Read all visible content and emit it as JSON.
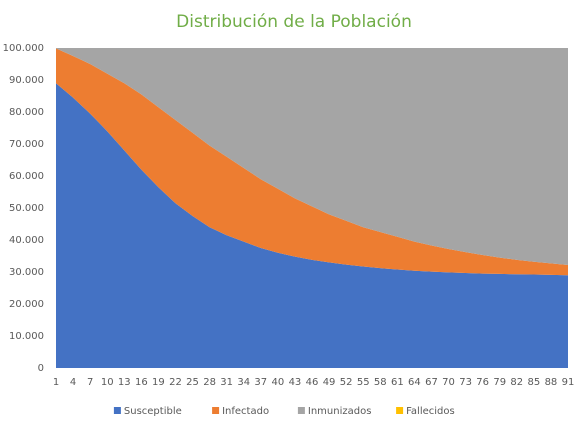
{
  "chart_data": {
    "type": "stacked_area",
    "title": "Distribución de la Población",
    "categories": [
      "1",
      "4",
      "7",
      "10",
      "13",
      "16",
      "19",
      "22",
      "25",
      "28",
      "31",
      "34",
      "37",
      "40",
      "43",
      "46",
      "49",
      "52",
      "55",
      "58",
      "61",
      "64",
      "67",
      "70",
      "73",
      "76",
      "79",
      "82",
      "85",
      "88",
      "91"
    ],
    "series": [
      {
        "name": "Susceptible",
        "color": "#4472c4",
        "values": [
          89000,
          84500,
          79500,
          74000,
          68000,
          62000,
          56500,
          51500,
          47500,
          44000,
          41500,
          39500,
          37500,
          36000,
          34800,
          33800,
          33000,
          32300,
          31700,
          31200,
          30800,
          30400,
          30100,
          29900,
          29700,
          29500,
          29400,
          29300,
          29200,
          29100,
          29000
        ]
      },
      {
        "name": "Infectado",
        "color": "#ed7d31",
        "values": [
          10900,
          13000,
          15500,
          18000,
          21000,
          23500,
          25000,
          26000,
          26000,
          25500,
          24500,
          23000,
          21500,
          20000,
          18200,
          16700,
          15000,
          13700,
          12300,
          11300,
          10200,
          9100,
          8200,
          7300,
          6500,
          5800,
          5100,
          4500,
          4000,
          3600,
          3200
        ]
      },
      {
        "name": "Inmunizados",
        "color": "#a5a5a5",
        "values": [
          100,
          2500,
          5000,
          8000,
          11000,
          14500,
          18500,
          22500,
          26500,
          30500,
          34000,
          37500,
          41000,
          44000,
          47000,
          49500,
          52000,
          54000,
          56000,
          57500,
          59000,
          60500,
          61700,
          62800,
          63800,
          64700,
          65500,
          66200,
          66800,
          67300,
          67800
        ]
      },
      {
        "name": "Fallecidos",
        "color": "#ffc000",
        "values": [
          0,
          0,
          0,
          0,
          0,
          0,
          0,
          0,
          0,
          0,
          0,
          0,
          0,
          0,
          0,
          0,
          0,
          0,
          0,
          0,
          0,
          0,
          0,
          0,
          0,
          0,
          0,
          0,
          0,
          0,
          0
        ]
      }
    ],
    "ylim": [
      0,
      100000
    ],
    "yticks": [
      0,
      {
        "value": 10000,
        "label": "10.000"
      },
      {
        "value": 20000,
        "label": "20.000"
      },
      {
        "value": 30000,
        "label": "30.000"
      },
      {
        "value": 40000,
        "label": "40.000"
      },
      {
        "value": 50000,
        "label": "50.000"
      },
      {
        "value": 60000,
        "label": "60.000"
      },
      {
        "value": 70000,
        "label": "70.000"
      },
      {
        "value": 80000,
        "label": "80.000"
      },
      {
        "value": 90000,
        "label": "90.000"
      },
      {
        "value": 100000,
        "label": "100.000"
      }
    ],
    "title_color": "#70ad47"
  }
}
